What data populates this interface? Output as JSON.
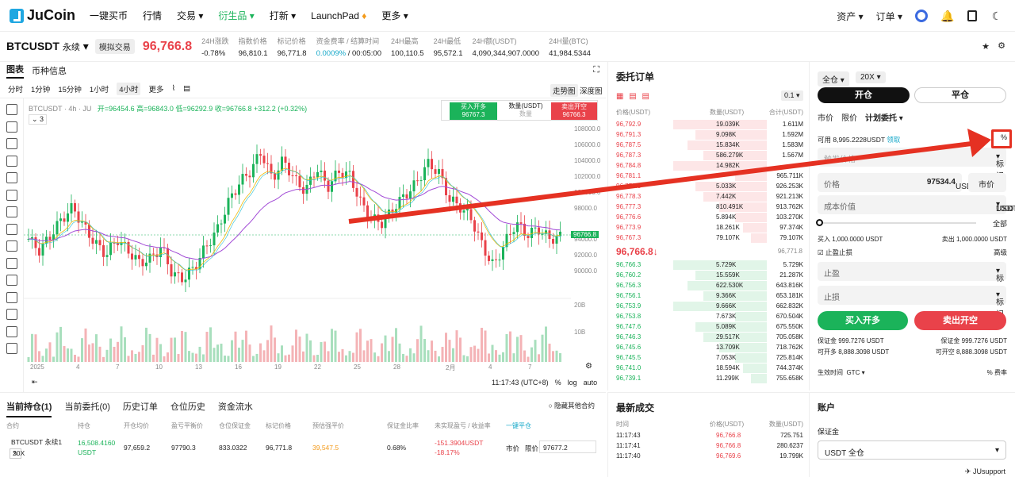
{
  "nav": {
    "brand": "JuCoin",
    "items": [
      "一键买币",
      "行情",
      "交易",
      "衍生品",
      "打新",
      "LaunchPad",
      "更多"
    ],
    "right": [
      "资产",
      "订单"
    ],
    "support": "JUsupport"
  },
  "symbol": {
    "name": "BTCUSDT",
    "type": "永续",
    "demo": "模拟交易",
    "price": "96,766.8"
  },
  "stats": [
    {
      "k": "24H涨跌",
      "v": "-0.78%"
    },
    {
      "k": "指数价格",
      "v": "96,810.1"
    },
    {
      "k": "标记价格",
      "v": "96,771.8"
    },
    {
      "k": "资金费率 / 结算时间",
      "v": "0.0009%",
      "v2": "/ 00:05:00"
    },
    {
      "k": "24H最高",
      "v": "100,110.5"
    },
    {
      "k": "24H最低",
      "v": "95,572.1"
    },
    {
      "k": "24H额(USDT)",
      "v": "4,090,344,907.0000"
    },
    {
      "k": "24H量(BTC)",
      "v": "41,984.5344"
    }
  ],
  "chart_tabs": [
    "图表",
    "币种信息"
  ],
  "intervals": [
    "分时",
    "1分钟",
    "15分钟",
    "1小时",
    "4小时",
    "更多"
  ],
  "views": [
    "走势图",
    "深度图"
  ],
  "chart_info": {
    "title": "BTCUSDT · 4h · JU",
    "ohlc": "开=96454.6  高=96843.0  低=96292.9  收=96766.8  +312.2 (+0.32%)",
    "indicators": "3"
  },
  "quick_trade": {
    "buy": "买入开多",
    "buy_price": "96767.3",
    "qty_label": "数量(USDT)",
    "qty": "数量",
    "sell": "卖出开空",
    "sell_price": "96766.3"
  },
  "chart_data": {
    "type": "candlestick",
    "y_ticks": [
      "108000.0",
      "106000.0",
      "104000.0",
      "102000.0",
      "100000.0",
      "98000.0",
      "94000.0",
      "92000.0",
      "90000.0"
    ],
    "price_tag": "96766.8",
    "volume_ticks": [
      "20B",
      "10B"
    ],
    "x_ticks": [
      "2025",
      "4",
      "7",
      "10",
      "13",
      "16",
      "19",
      "22",
      "25",
      "28",
      "2月",
      "4",
      "7"
    ],
    "time": "11:17:43 (UTC+8)",
    "opts": [
      "%",
      "log",
      "auto"
    ]
  },
  "orderbook": {
    "title": "委托订单",
    "step": "0.1",
    "headers": [
      "价格(USDT)",
      "数量(USDT)",
      "合计(USDT)"
    ],
    "asks": [
      [
        "96,792.9",
        "19.039K",
        "1.611M"
      ],
      [
        "96,791.3",
        "9.098K",
        "1.592M"
      ],
      [
        "96,787.5",
        "15.834K",
        "1.583M"
      ],
      [
        "96,787.3",
        "586.279K",
        "1.567M"
      ],
      [
        "96,784.8",
        "14.982K",
        ""
      ],
      [
        "96,781.1",
        "",
        "965.711K"
      ],
      [
        "96,779.3",
        "5.033K",
        "926.253K"
      ],
      [
        "96,778.3",
        "7.442K",
        "921.213K"
      ],
      [
        "96,777.3",
        "810.491K",
        "913.762K"
      ],
      [
        "96,776.6",
        "5.894K",
        "103.270K"
      ],
      [
        "96,773.9",
        "18.261K",
        "97.374K"
      ],
      [
        "96,767.3",
        "79.107K",
        "79.107K"
      ]
    ],
    "last": "96,766.8↓",
    "mark": "96,771.8",
    "bids": [
      [
        "96,766.3",
        "5.729K",
        "5.729K"
      ],
      [
        "96,760.2",
        "15.559K",
        "21.287K"
      ],
      [
        "96,756.3",
        "622.530K",
        "643.816K"
      ],
      [
        "96,756.1",
        "9.366K",
        "653.181K"
      ],
      [
        "96,753.9",
        "9.666K",
        "662.832K"
      ],
      [
        "96,753.8",
        "7.673K",
        "670.504K"
      ],
      [
        "96,747.6",
        "5.089K",
        "675.550K"
      ],
      [
        "96,746.3",
        "29.517K",
        "705.058K"
      ],
      [
        "96,745.6",
        "13.709K",
        "718.762K"
      ],
      [
        "96,745.5",
        "7.053K",
        "725.814K"
      ],
      [
        "96,741.0",
        "18.594K",
        "744.374K"
      ],
      [
        "96,739.1",
        "11.299K",
        "755.658K"
      ]
    ]
  },
  "trade": {
    "margin_mode": "全仓",
    "leverage": "20X",
    "open": "开仓",
    "close": "平仓",
    "types": [
      "市价",
      "限价",
      "计划委托"
    ],
    "available": "可用 8,995.2228USDT",
    "claim": "领取",
    "trigger_placeholder": "触发价格",
    "mark": "标记",
    "price_label": "价格",
    "price": "97534.4",
    "price_unit": "USDT",
    "market": "市价",
    "cost_label": "成本价值",
    "cost": "1000",
    "cost_unit": "USDT",
    "all": "全部",
    "buy_amt": "买入 1,000.0000 USDT",
    "sell_amt": "卖出 1,000.0000 USDT",
    "tpsl": "止盈止损",
    "advanced": "高级",
    "tp": "止盈",
    "sl": "止损",
    "buy_btn": "买入开多",
    "sell_btn": "卖出开空",
    "margin_l": "保证金 999.7276 USDT",
    "margin_r": "保证金 999.7276 USDT",
    "open_l": "可开多 8,888.3098 USDT",
    "open_r": "可开空 8,888.3098 USDT",
    "tif": "生效时间",
    "tif_v": "GTC",
    "fee": "费率"
  },
  "bottom": {
    "tabs": [
      "当前持仓(1)",
      "当前委托(0)",
      "历史订单",
      "仓位历史",
      "资金流水"
    ],
    "hide": "隐藏其他合约",
    "headers": [
      "合约",
      "持仓",
      "开仓均价",
      "盈亏平衡价",
      "仓位保证金",
      "标记价格",
      "预估强平价",
      "保证金比率",
      "未实现盈亏 / 收益率",
      "一键平仓"
    ],
    "row": {
      "contract": "BTCUSDT 永续1",
      "lev": "20X",
      "pos": "16,508.4160",
      "pos_unit": "USDT",
      "entry": "97,659.2",
      "be": "97790.3",
      "margin": "833.0322",
      "mark": "96,771.8",
      "liq": "39,547.5",
      "ratio": "0.68%",
      "pnl": "-151.3904USDT",
      "roe": "-18.17%",
      "market": "市价",
      "limit": "限价",
      "limit_price": "97677.2"
    }
  },
  "recent": {
    "title": "最新成交",
    "headers": [
      "时间",
      "价格(USDT)",
      "数量(USDT)"
    ],
    "rows": [
      [
        "11:17:43",
        "96,766.8",
        "725.751"
      ],
      [
        "11:17:41",
        "96,766.8",
        "280.6237"
      ],
      [
        "11:17:40",
        "96,769.6",
        "19.799K"
      ]
    ]
  },
  "account": {
    "title": "账户",
    "margin": "保证金",
    "mode": "USDT 全仓"
  }
}
